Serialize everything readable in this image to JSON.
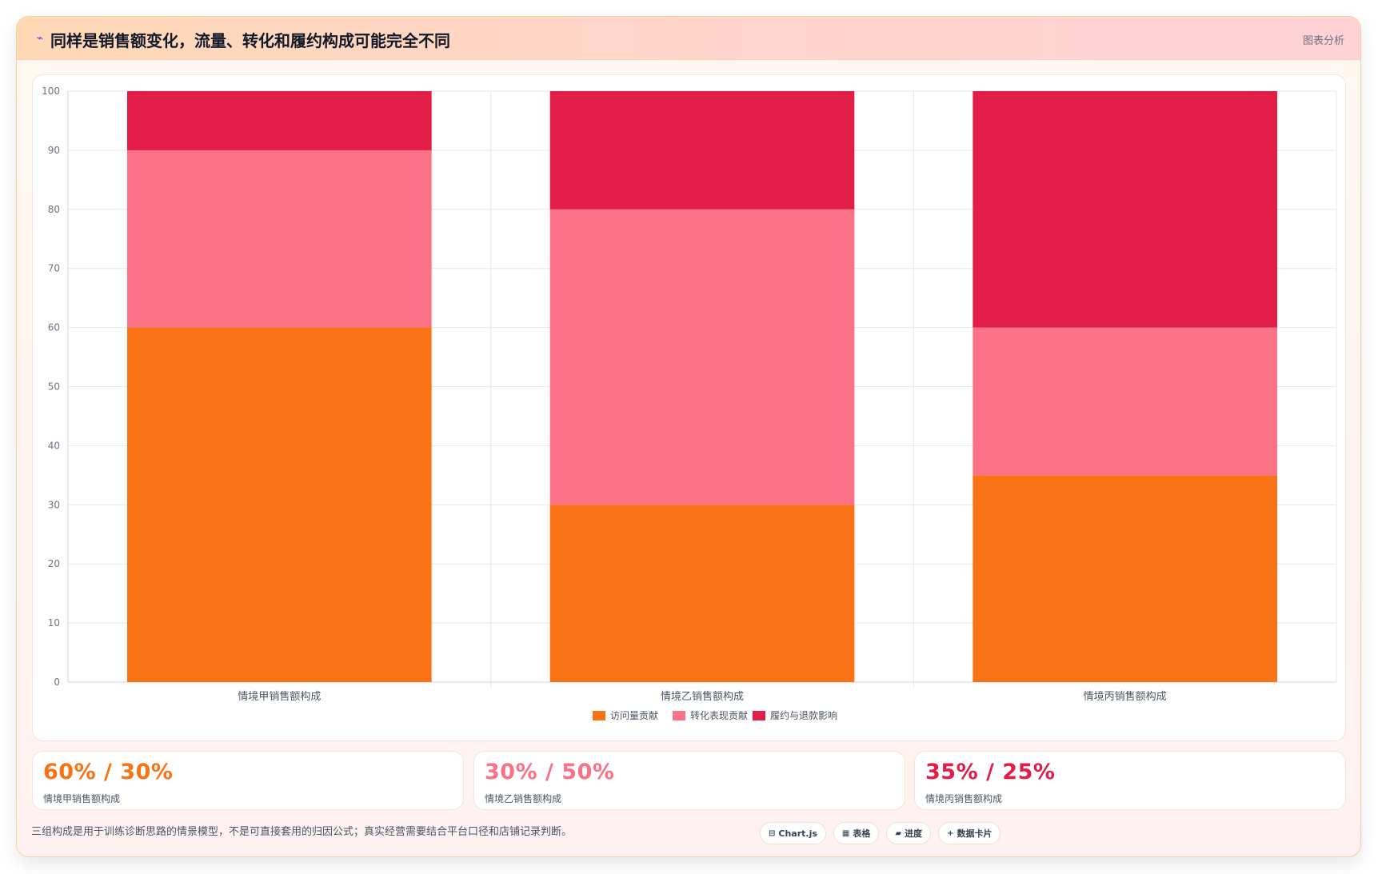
{
  "header": {
    "title": "同样是销售额变化，流量、转化和履约构成可能完全不同",
    "action": "图表分析",
    "icon": "trend-icon"
  },
  "chart_data": {
    "type": "bar",
    "stacked": true,
    "categories": [
      "情境甲销售额构成",
      "情境乙销售额构成",
      "情境丙销售额构成"
    ],
    "series": [
      {
        "name": "访问量贡献",
        "values": [
          60,
          30,
          35
        ],
        "color": "#f97316"
      },
      {
        "name": "转化表现贡献",
        "values": [
          30,
          50,
          25
        ],
        "color": "#fb7185"
      },
      {
        "name": "履约与退款影响",
        "values": [
          10,
          20,
          40
        ],
        "color": "#e11d48"
      }
    ],
    "ylim": [
      0,
      100
    ],
    "yticks": [
      0,
      10,
      20,
      30,
      40,
      50,
      60,
      70,
      80,
      90,
      100
    ],
    "grid": true,
    "legend": "bottom"
  },
  "stats": [
    {
      "value": "60% / 30%",
      "label": "情境甲销售额构成",
      "color": "#f97316"
    },
    {
      "value": "30% / 50%",
      "label": "情境乙销售额构成",
      "color": "#fb7185"
    },
    {
      "value": "35% / 25%",
      "label": "情境丙销售额构成",
      "color": "#e11d48"
    }
  ],
  "footer": {
    "note": "三组构成是用于训练诊断思路的情景模型，不是可直接套用的归因公式；真实经营需要结合平台口径和店铺记录判断。",
    "pills": [
      {
        "icon": "⊟",
        "label": "Chart.js"
      },
      {
        "icon": "▦",
        "label": "表格"
      },
      {
        "icon": "▰",
        "label": "进度"
      },
      {
        "icon": "+",
        "label": "数据卡片"
      }
    ]
  }
}
